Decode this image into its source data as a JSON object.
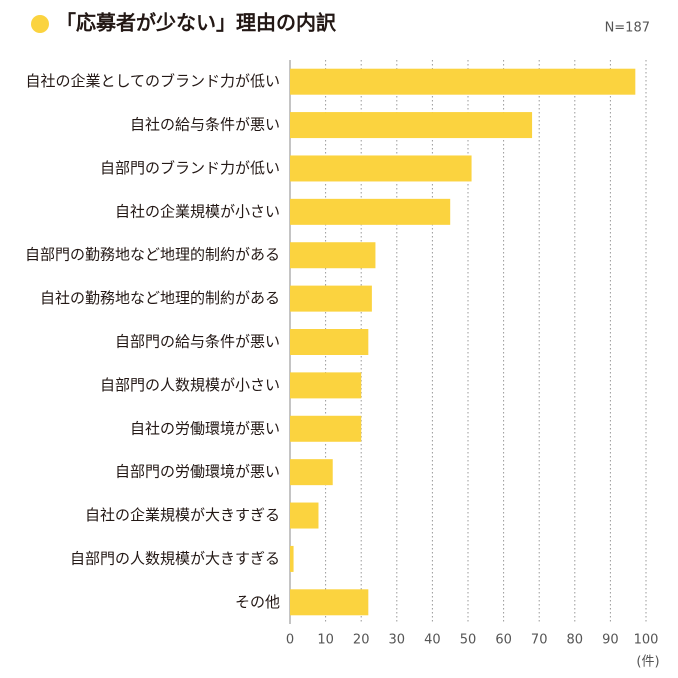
{
  "chart_data": {
    "type": "barh",
    "title": "「応募者が少ない」理由の内訳",
    "note": "N=187",
    "x_unit": "(件)",
    "categories": [
      "自社の企業としてのブランド力が低い",
      "自社の給与条件が悪い",
      "自部門のブランド力が低い",
      "自社の企業規模が小さい",
      "自部門の勤務地など地理的制約がある",
      "自社の勤務地など地理的制約がある",
      "自部門の給与条件が悪い",
      "自部門の人数規模が小さい",
      "自社の労働環境が悪い",
      "自部門の労働環境が悪い",
      "自社の企業規模が大きすぎる",
      "自部門の人数規模が大きすぎる",
      "その他"
    ],
    "values": [
      97,
      68,
      51,
      45,
      24,
      23,
      22,
      20,
      20,
      12,
      8,
      1,
      22
    ],
    "color": "#fbd33f",
    "xlim": [
      0,
      100
    ],
    "xticks": [
      0,
      10,
      20,
      30,
      40,
      50,
      60,
      70,
      80,
      90,
      100
    ],
    "grid": true
  }
}
